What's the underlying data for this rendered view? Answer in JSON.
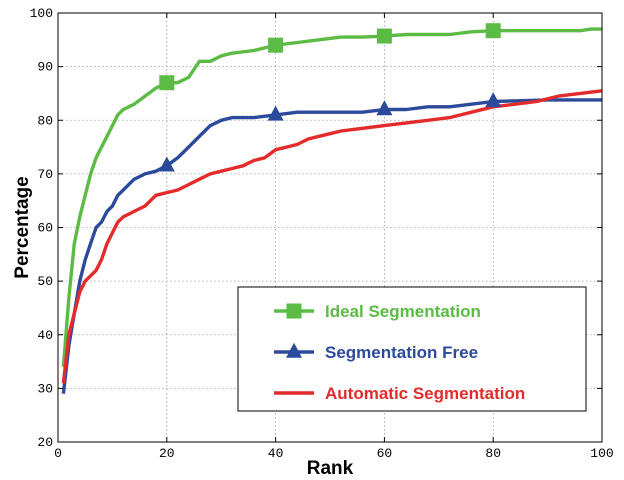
{
  "chart_data": {
    "type": "line",
    "xlabel": "Rank",
    "ylabel": "Percentage",
    "xlim": [
      0,
      100
    ],
    "ylim": [
      20,
      100
    ],
    "xticks": [
      0,
      20,
      40,
      60,
      80,
      100
    ],
    "yticks": [
      20,
      30,
      40,
      50,
      60,
      70,
      80,
      90,
      100
    ],
    "grid": true,
    "legend_position": "bottom-right",
    "series": [
      {
        "name": "Ideal Segmentation",
        "color": "#5bbb45",
        "marker": "square",
        "marker_x": [
          20,
          40,
          60,
          80
        ],
        "points": [
          [
            1,
            34
          ],
          [
            2,
            47
          ],
          [
            3,
            57
          ],
          [
            4,
            62
          ],
          [
            5,
            66
          ],
          [
            6,
            70
          ],
          [
            7,
            73
          ],
          [
            8,
            75
          ],
          [
            9,
            77
          ],
          [
            10,
            79
          ],
          [
            11,
            81
          ],
          [
            12,
            82
          ],
          [
            14,
            83
          ],
          [
            16,
            84.5
          ],
          [
            18,
            86
          ],
          [
            20,
            87
          ],
          [
            22,
            87
          ],
          [
            24,
            88
          ],
          [
            26,
            91
          ],
          [
            28,
            91
          ],
          [
            30,
            92
          ],
          [
            32,
            92.5
          ],
          [
            36,
            93
          ],
          [
            38,
            93.5
          ],
          [
            40,
            94
          ],
          [
            44,
            94.5
          ],
          [
            48,
            95
          ],
          [
            52,
            95.5
          ],
          [
            56,
            95.5
          ],
          [
            60,
            95.7
          ],
          [
            64,
            96
          ],
          [
            68,
            96
          ],
          [
            72,
            96
          ],
          [
            76,
            96.5
          ],
          [
            80,
            96.7
          ],
          [
            88,
            96.7
          ],
          [
            96,
            96.7
          ],
          [
            98,
            97
          ],
          [
            100,
            97
          ]
        ]
      },
      {
        "name": "Segmentation Free",
        "color": "#2c4a9c",
        "marker": "triangle",
        "marker_x": [
          20,
          40,
          60,
          80
        ],
        "points": [
          [
            1,
            29
          ],
          [
            2,
            38
          ],
          [
            3,
            44
          ],
          [
            4,
            50
          ],
          [
            5,
            54
          ],
          [
            6,
            57
          ],
          [
            7,
            60
          ],
          [
            8,
            61
          ],
          [
            9,
            63
          ],
          [
            10,
            64
          ],
          [
            11,
            66
          ],
          [
            12,
            67
          ],
          [
            13,
            68
          ],
          [
            14,
            69
          ],
          [
            15,
            69.5
          ],
          [
            16,
            70
          ],
          [
            18,
            70.5
          ],
          [
            20,
            71.5
          ],
          [
            22,
            73
          ],
          [
            24,
            75
          ],
          [
            26,
            77
          ],
          [
            28,
            79
          ],
          [
            30,
            80
          ],
          [
            32,
            80.5
          ],
          [
            36,
            80.5
          ],
          [
            40,
            81
          ],
          [
            44,
            81.5
          ],
          [
            50,
            81.5
          ],
          [
            56,
            81.5
          ],
          [
            60,
            82
          ],
          [
            64,
            82
          ],
          [
            68,
            82.5
          ],
          [
            72,
            82.5
          ],
          [
            76,
            83
          ],
          [
            80,
            83.5
          ],
          [
            90,
            83.8
          ],
          [
            100,
            83.8
          ]
        ]
      },
      {
        "name": "Automatic Segmentation",
        "color": "#e32b2b",
        "marker": "none",
        "marker_x": [],
        "points": [
          [
            1,
            31
          ],
          [
            2,
            40
          ],
          [
            3,
            44
          ],
          [
            4,
            48
          ],
          [
            5,
            50
          ],
          [
            6,
            51
          ],
          [
            7,
            52
          ],
          [
            8,
            54
          ],
          [
            9,
            57
          ],
          [
            10,
            59
          ],
          [
            11,
            61
          ],
          [
            12,
            62
          ],
          [
            14,
            63
          ],
          [
            16,
            64
          ],
          [
            18,
            66
          ],
          [
            20,
            66.5
          ],
          [
            22,
            67
          ],
          [
            24,
            68
          ],
          [
            26,
            69
          ],
          [
            28,
            70
          ],
          [
            30,
            70.5
          ],
          [
            32,
            71
          ],
          [
            34,
            71.5
          ],
          [
            36,
            72.5
          ],
          [
            38,
            73
          ],
          [
            40,
            74.5
          ],
          [
            42,
            75
          ],
          [
            44,
            75.5
          ],
          [
            46,
            76.5
          ],
          [
            48,
            77
          ],
          [
            50,
            77.5
          ],
          [
            52,
            78
          ],
          [
            56,
            78.5
          ],
          [
            60,
            79
          ],
          [
            64,
            79.5
          ],
          [
            68,
            80
          ],
          [
            72,
            80.5
          ],
          [
            76,
            81.5
          ],
          [
            80,
            82.5
          ],
          [
            84,
            83
          ],
          [
            88,
            83.5
          ],
          [
            92,
            84.5
          ],
          [
            96,
            85
          ],
          [
            100,
            85.5
          ]
        ]
      }
    ]
  }
}
